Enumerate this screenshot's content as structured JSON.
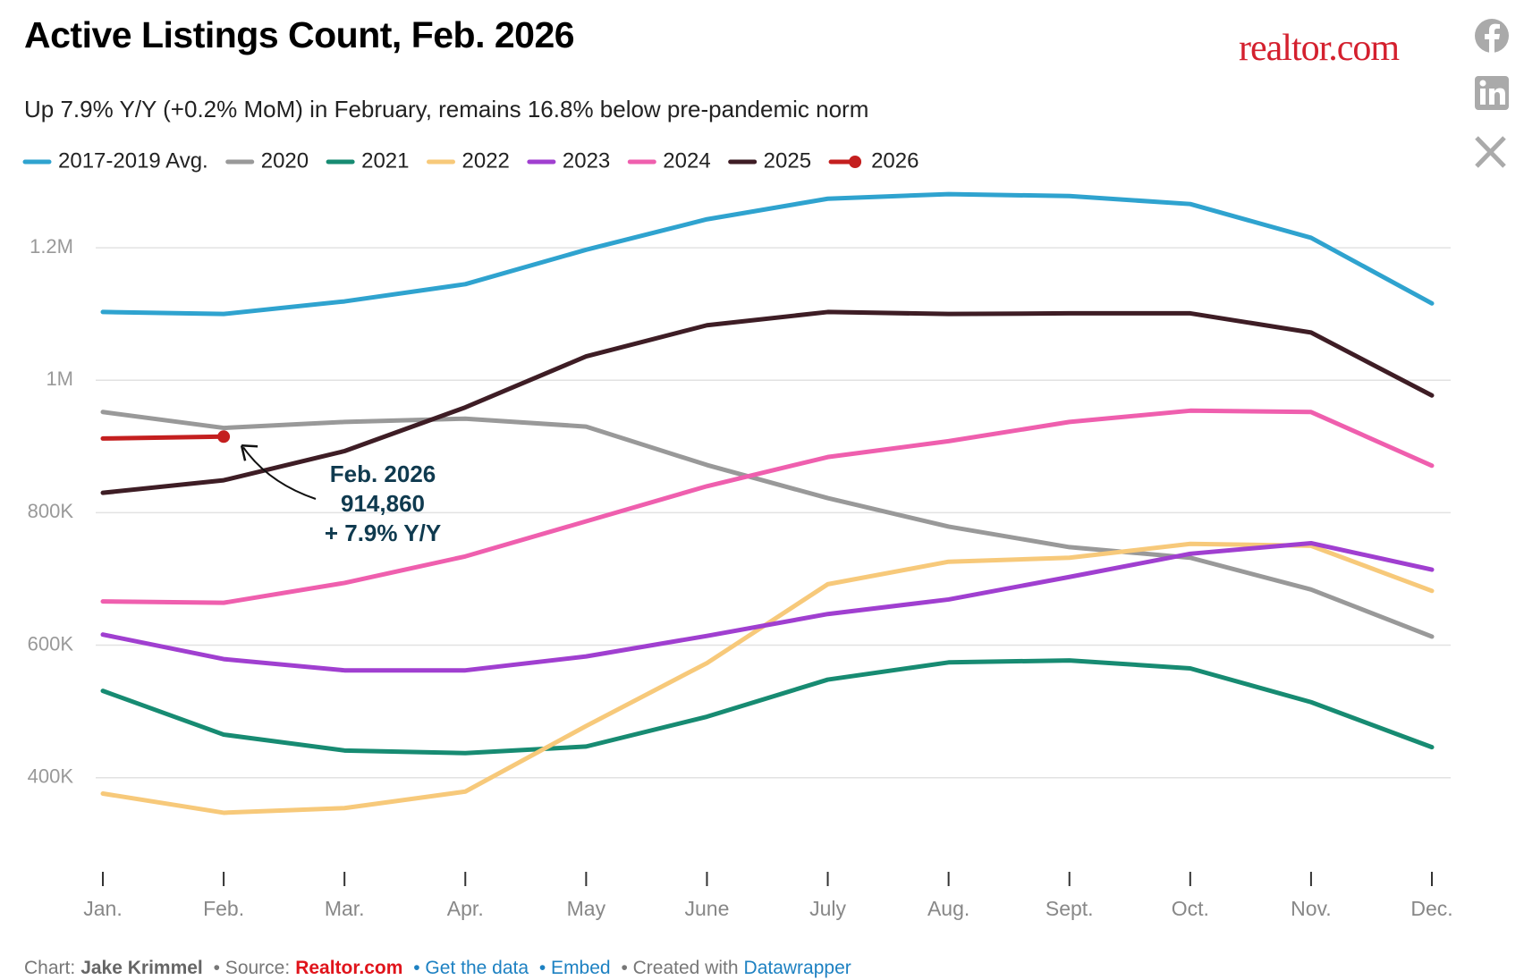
{
  "chart_data": {
    "type": "line",
    "title": "Active Listings Count, Feb. 2026",
    "subtitle": "Up 7.9% Y/Y (+0.2% MoM) in February, remains 16.8% below pre-pandemic norm",
    "categories": [
      "Jan.",
      "Feb.",
      "Mar.",
      "Apr.",
      "May",
      "June",
      "July",
      "Aug.",
      "Sept.",
      "Oct.",
      "Nov.",
      "Dec."
    ],
    "series": [
      {
        "name": "2017-2019 Avg.",
        "color": "#2fa3cf",
        "values": [
          1103000,
          1100000,
          1119000,
          1145000,
          1197000,
          1243000,
          1274000,
          1281000,
          1278000,
          1266000,
          1215000,
          1116000
        ]
      },
      {
        "name": "2020",
        "color": "#999999",
        "values": [
          952000,
          928000,
          937000,
          942000,
          930000,
          872000,
          822000,
          779000,
          748000,
          732000,
          684000,
          613000
        ]
      },
      {
        "name": "2021",
        "color": "#178b72",
        "values": [
          531000,
          465000,
          441000,
          437000,
          447000,
          492000,
          548000,
          574000,
          577000,
          565000,
          514000,
          446000
        ]
      },
      {
        "name": "2022",
        "color": "#f7c97a",
        "values": [
          376000,
          347000,
          354000,
          379000,
          478000,
          573000,
          692000,
          726000,
          732000,
          753000,
          750000,
          682000
        ]
      },
      {
        "name": "2023",
        "color": "#a03fd0",
        "values": [
          616000,
          579000,
          562000,
          562000,
          583000,
          614000,
          647000,
          669000,
          703000,
          738000,
          754000,
          714000
        ]
      },
      {
        "name": "2024",
        "color": "#ef5fae",
        "values": [
          666000,
          664000,
          694000,
          734000,
          787000,
          840000,
          884000,
          908000,
          937000,
          954000,
          952000,
          871000
        ]
      },
      {
        "name": "2025",
        "color": "#3e1d25",
        "values": [
          830000,
          849000,
          893000,
          959000,
          1036000,
          1083000,
          1103000,
          1100000,
          1101000,
          1101000,
          1072000,
          977000
        ]
      },
      {
        "name": "2026",
        "color": "#c41f1f",
        "values": [
          912000,
          914860,
          null,
          null,
          null,
          null,
          null,
          null,
          null,
          null,
          null,
          null
        ]
      }
    ],
    "ylim": [
      270000,
      1300000
    ],
    "yticks": [
      {
        "value": 400000,
        "label": "400K"
      },
      {
        "value": 600000,
        "label": "600K"
      },
      {
        "value": 800000,
        "label": "800K"
      },
      {
        "value": 1000000,
        "label": "1M"
      },
      {
        "value": 1200000,
        "label": "1.2M"
      }
    ],
    "grid": true,
    "annotation": {
      "lines": [
        "Feb. 2026",
        "914,860",
        "+ 7.9% Y/Y"
      ],
      "color": "#0f3a4f"
    }
  },
  "logo": "realtor.com",
  "footer": {
    "chart": "Chart:",
    "author": "Jake Krimmel",
    "source": "• Source:",
    "source_name": "Realtor.com",
    "data_link": "• Get the data",
    "embed": "• Embed",
    "created": "• Created with",
    "tool": "Datawrapper"
  }
}
